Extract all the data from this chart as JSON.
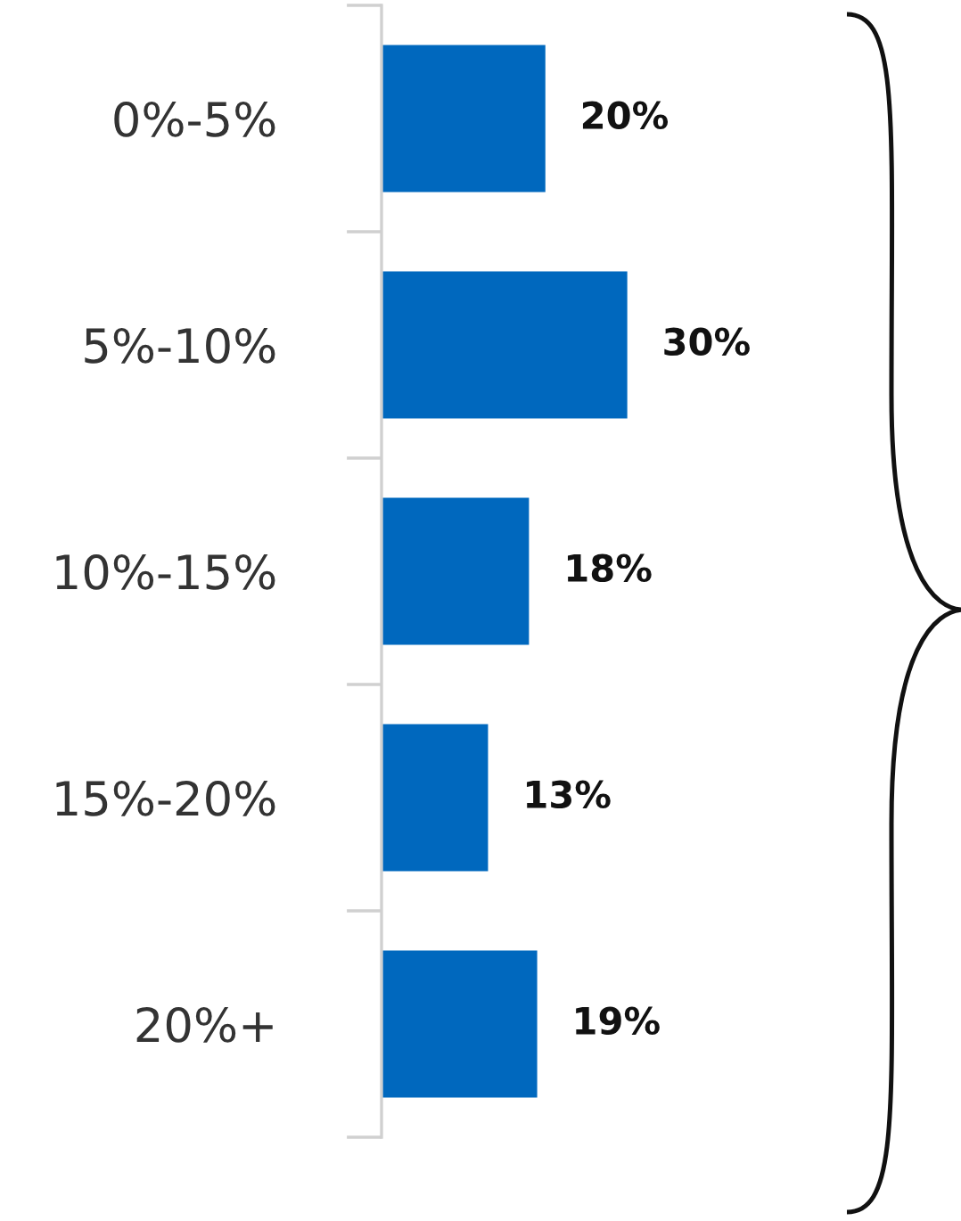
{
  "chart_data": {
    "type": "bar",
    "orientation": "horizontal",
    "categories": [
      "0%-5%",
      "5%-10%",
      "10%-15%",
      "15%-20%",
      "20%+"
    ],
    "values": [
      20,
      30,
      18,
      13,
      19
    ],
    "value_labels": [
      "20%",
      "30%",
      "18%",
      "13%",
      "19%"
    ],
    "color": "#0068be",
    "grid": false,
    "legend": false
  }
}
